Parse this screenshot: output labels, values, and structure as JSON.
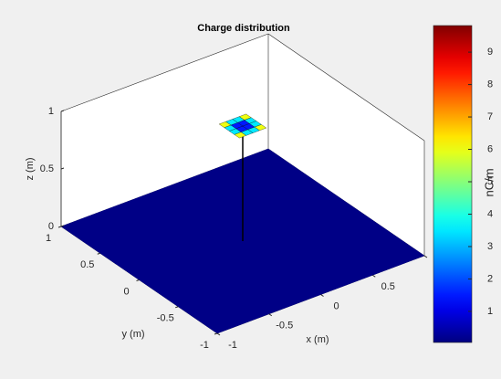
{
  "chart_data": {
    "type": "surface3d",
    "title": "Charge distribution",
    "xlabel": "x (m)",
    "ylabel": "y (m)",
    "zlabel": "z (m)",
    "xlim": [
      -1,
      1
    ],
    "ylim": [
      -1,
      1
    ],
    "zlim": [
      0,
      1
    ],
    "xticks": [
      -1,
      -0.5,
      0,
      0.5,
      1
    ],
    "yticks": [
      -1,
      -0.5,
      0,
      0.5,
      1
    ],
    "zticks": [
      0,
      0.5,
      1
    ],
    "colorbar": {
      "label": "nC/m",
      "clim": [
        0.04,
        9.82
      ],
      "ticks": [
        1,
        2,
        3,
        4,
        5,
        6,
        7,
        8,
        9
      ]
    },
    "surfaces": [
      {
        "x": [
          -1,
          1
        ],
        "y": [
          -1,
          1
        ],
        "z": 0,
        "values": [
          [
            0.1
          ]
        ]
      },
      {
        "x": [
          -0.13,
          -0.065,
          0,
          0.065,
          0.13
        ],
        "y": [
          -0.13,
          -0.065,
          0,
          0.065,
          0.13
        ],
        "z": 1,
        "values": [
          [
            6,
            3.5,
            3.5,
            6
          ],
          [
            3.5,
            1.5,
            1.5,
            3.5
          ],
          [
            3.5,
            1.5,
            1.5,
            3.5
          ],
          [
            6,
            3.5,
            3.5,
            6
          ]
        ]
      }
    ],
    "feed": {
      "x": 0,
      "y": 0,
      "z": [
        0,
        1
      ]
    }
  }
}
